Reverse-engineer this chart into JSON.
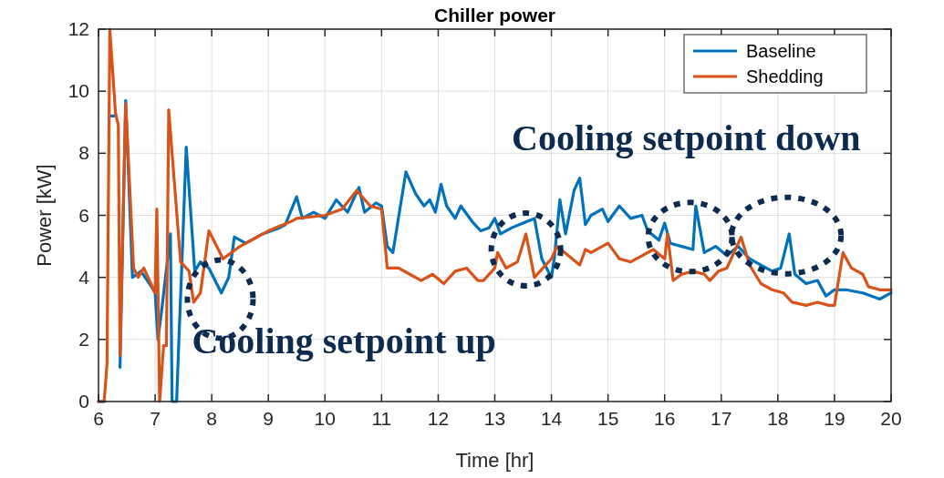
{
  "chart_data": {
    "type": "line",
    "title": "Chiller power",
    "xlabel": "Time [hr]",
    "ylabel": "Power [kW]",
    "xlim": [
      6,
      20
    ],
    "xticks": [
      6,
      7,
      8,
      9,
      10,
      11,
      12,
      13,
      14,
      15,
      16,
      17,
      18,
      19,
      20
    ],
    "ylim": [
      0,
      12
    ],
    "yticks": [
      0,
      2,
      4,
      6,
      8,
      10,
      12
    ],
    "grid": true,
    "legend": "top right",
    "line_style": "solid",
    "annotations": [
      "Cooling setpoint up",
      "Cooling setpoint down"
    ],
    "series": [
      {
        "name": "Baseline",
        "color": "#0072bd",
        "x": [
          6,
          6.1,
          6.15,
          6.2,
          6.3,
          6.35,
          6.38,
          6.48,
          6.6,
          6.75,
          6.9,
          7.0,
          7.05,
          7.12,
          7.27,
          7.3,
          7.38,
          7.42,
          7.47,
          7.55,
          7.7,
          7.8,
          7.95,
          8.17,
          8.3,
          8.4,
          8.6,
          8.9,
          9.2,
          9.3,
          9.5,
          9.6,
          9.8,
          10,
          10.2,
          10.4,
          10.6,
          10.7,
          10.9,
          11.0,
          11.1,
          11.2,
          11.43,
          11.6,
          11.75,
          11.85,
          11.95,
          12.05,
          12.15,
          12.3,
          12.4,
          12.6,
          12.75,
          12.9,
          13.0,
          13.1,
          13.3,
          13.5,
          13.7,
          13.83,
          14.0,
          14.05,
          14.15,
          14.25,
          14.4,
          14.5,
          14.6,
          14.7,
          14.9,
          15.0,
          15.2,
          15.4,
          15.6,
          15.7,
          15.9,
          16.0,
          16.1,
          16.3,
          16.5,
          16.55,
          16.7,
          16.9,
          17.1,
          17.3,
          17.5,
          17.7,
          17.9,
          18.05,
          18.2,
          18.3,
          18.5,
          18.7,
          18.85,
          19.0,
          19.2,
          19.5,
          19.8,
          20
        ],
        "values": [
          0,
          0,
          null,
          9.2,
          9.2,
          null,
          1.1,
          9.7,
          4.0,
          4.2,
          3.8,
          3.5,
          2.0,
          3.0,
          5.4,
          0,
          0,
          2.0,
          4.3,
          8.2,
          4.2,
          4.5,
          4.3,
          3.5,
          4.0,
          5.3,
          5.1,
          5.4,
          5.6,
          5.7,
          6.6,
          5.9,
          6.1,
          5.9,
          6.5,
          6.1,
          6.9,
          6.1,
          6.4,
          6.3,
          5.0,
          4.8,
          7.4,
          6.7,
          6.3,
          6.5,
          6.1,
          7.0,
          6.3,
          5.9,
          6.3,
          5.8,
          5.5,
          5.6,
          5.9,
          5.4,
          5.6,
          5.75,
          5.9,
          4.6,
          4.0,
          4.6,
          6.5,
          5.4,
          6.8,
          7.2,
          5.7,
          6.0,
          6.2,
          5.8,
          6.3,
          5.9,
          6.0,
          5.5,
          5.2,
          5.75,
          5.1,
          5.0,
          4.9,
          6.3,
          4.8,
          5.0,
          4.7,
          5.0,
          4.6,
          4.4,
          4.2,
          4.3,
          5.4,
          4.1,
          3.8,
          3.9,
          3.4,
          3.6,
          3.6,
          3.5,
          3.3,
          3.5
        ]
      },
      {
        "name": "Shedding",
        "color": "#d95319",
        "x": [
          6,
          6.1,
          6.15,
          6.2,
          6.3,
          6.35,
          6.38,
          6.48,
          6.62,
          6.7,
          6.8,
          6.95,
          7.0,
          7.03,
          7.08,
          7.15,
          7.2,
          7.24,
          7.45,
          7.6,
          7.68,
          7.8,
          7.95,
          8.2,
          8.5,
          9.0,
          9.4,
          9.5,
          10,
          10.3,
          10.56,
          10.8,
          11.0,
          11.1,
          11.3,
          11.5,
          11.7,
          11.9,
          12.1,
          12.3,
          12.5,
          12.7,
          12.8,
          13.0,
          13.05,
          13.2,
          13.4,
          13.55,
          13.7,
          13.85,
          14.0,
          14.1,
          14.3,
          14.5,
          14.6,
          14.7,
          15.0,
          15.2,
          15.4,
          15.6,
          15.8,
          16.0,
          16.05,
          16.15,
          16.3,
          16.5,
          16.7,
          16.8,
          16.95,
          17.1,
          17.35,
          17.5,
          17.7,
          17.9,
          18.1,
          18.25,
          18.5,
          18.7,
          18.9,
          19.0,
          19.15,
          19.3,
          19.5,
          19.6,
          19.8,
          20
        ],
        "values": [
          0,
          0,
          1.2,
          12,
          9.3,
          8.9,
          1.5,
          9.6,
          4.3,
          4.0,
          4.3,
          3.7,
          3.5,
          6.2,
          0,
          1.8,
          1.8,
          9.4,
          4.5,
          4.2,
          3.2,
          3.5,
          5.5,
          4.6,
          5.0,
          5.5,
          5.8,
          5.9,
          6.0,
          6.2,
          6.8,
          6.3,
          6.2,
          4.3,
          4.3,
          4.1,
          3.9,
          4.1,
          3.8,
          4.2,
          4.3,
          3.9,
          3.9,
          4.3,
          4.8,
          4.3,
          4.5,
          5.4,
          4.0,
          4.3,
          4.6,
          5.0,
          4.7,
          4.4,
          4.9,
          4.8,
          5.1,
          4.6,
          4.5,
          4.7,
          4.9,
          4.6,
          5.4,
          3.9,
          4.1,
          4.2,
          4.1,
          3.9,
          4.2,
          4.3,
          5.3,
          4.4,
          3.8,
          3.6,
          3.5,
          3.2,
          3.1,
          3.2,
          3.1,
          3.1,
          4.8,
          4.3,
          4.1,
          3.7,
          3.6,
          3.6
        ]
      }
    ]
  }
}
